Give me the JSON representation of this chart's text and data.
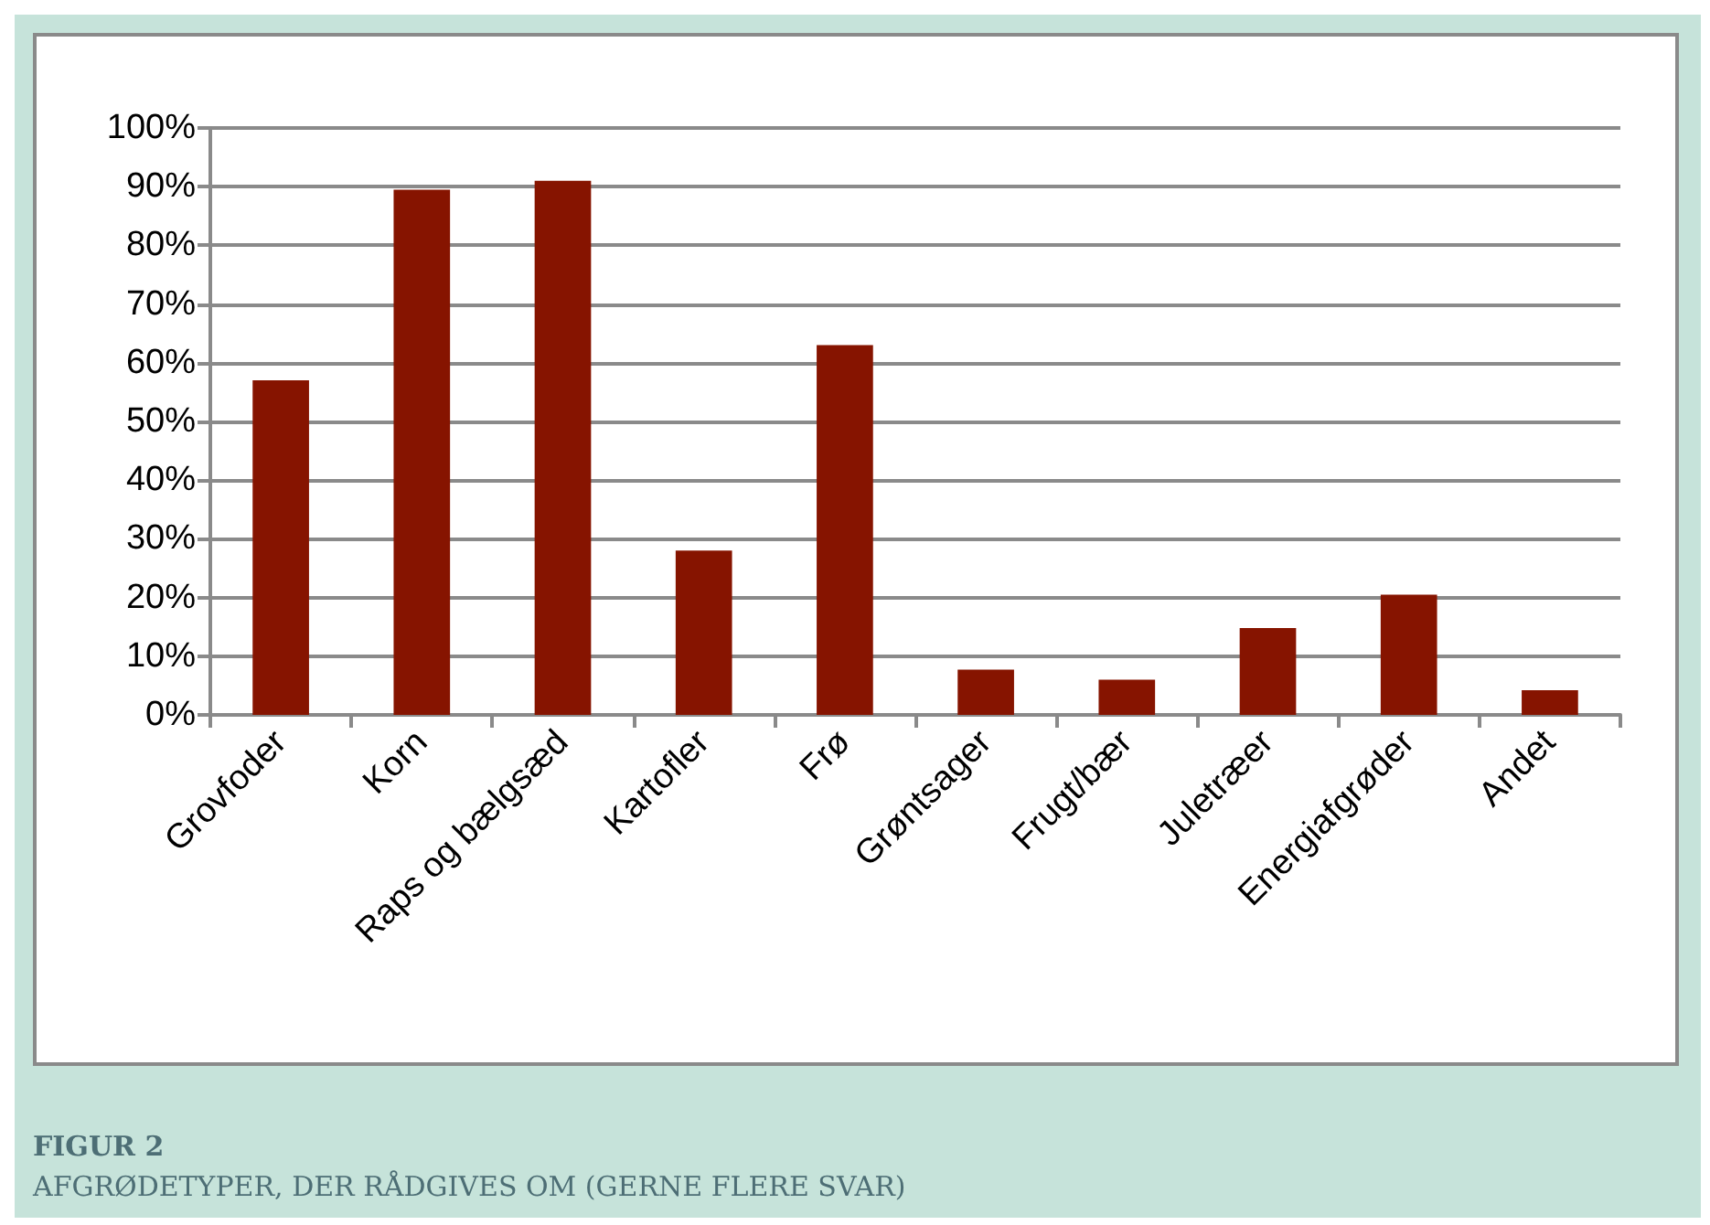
{
  "chart_data": {
    "type": "bar",
    "title": "FIGUR 2",
    "subtitle": "AFGRØDETYPER, DER RÅDGIVES OM (GERNE FLERE SVAR)",
    "categories": [
      "Grovfoder",
      "Korn",
      "Raps og bælgsæd",
      "Kartofler",
      "Frø",
      "Grøntsager",
      "Frugt/bær",
      "Juletræer",
      "Energiafgrøder",
      "Andet"
    ],
    "values": [
      57,
      89.5,
      91,
      28,
      63,
      7.7,
      6,
      14.8,
      20.5,
      4.2
    ],
    "color": "#861400",
    "ylim": [
      0,
      100
    ],
    "yticks": [
      {
        "value": 0,
        "label": "0%"
      },
      {
        "value": 10,
        "label": "10%"
      },
      {
        "value": 20,
        "label": "20%"
      },
      {
        "value": 30,
        "label": "30%"
      },
      {
        "value": 40,
        "label": "40%"
      },
      {
        "value": 50,
        "label": "50%"
      },
      {
        "value": 60,
        "label": "60%"
      },
      {
        "value": 70,
        "label": "70%"
      },
      {
        "value": 80,
        "label": "80%"
      },
      {
        "value": 90,
        "label": "90%"
      },
      {
        "value": 100,
        "label": "100%"
      }
    ],
    "grid": "y"
  }
}
